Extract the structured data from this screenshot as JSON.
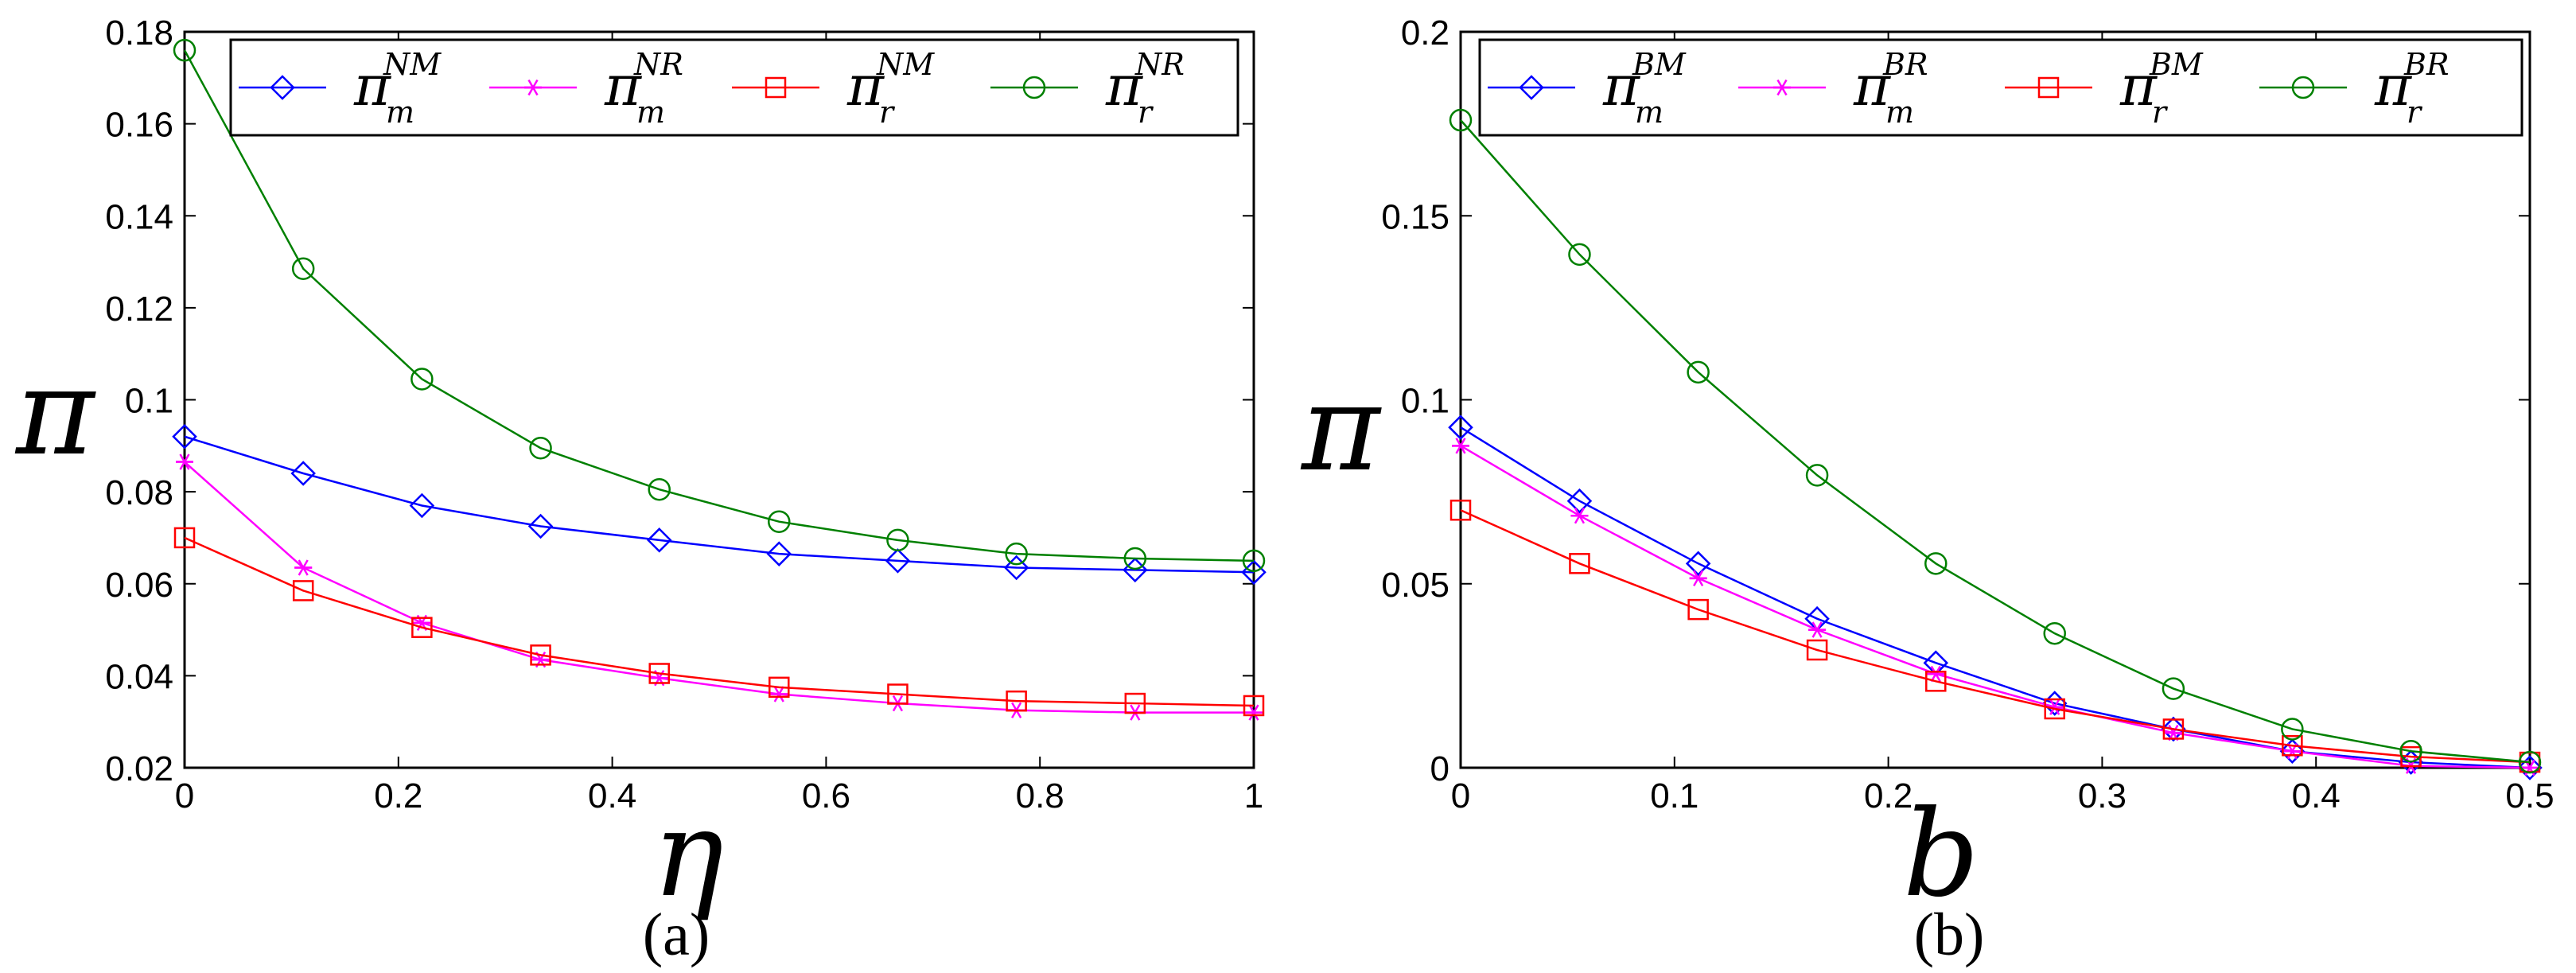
{
  "chart_data": [
    {
      "type": "line",
      "id": "a",
      "caption": "(a)",
      "xlabel": "η",
      "ylabel": "π",
      "xlim": [
        0,
        1
      ],
      "ylim": [
        0.02,
        0.18
      ],
      "xticks": [
        0,
        0.2,
        0.4,
        0.6,
        0.8,
        1
      ],
      "xtick_labels": [
        "0",
        "0.2",
        "0.4",
        "0.6",
        "0.8",
        "1"
      ],
      "yticks": [
        0.02,
        0.04,
        0.06,
        0.08,
        0.1,
        0.12,
        0.14,
        0.16,
        0.18
      ],
      "ytick_labels": [
        "0.02",
        "0.04",
        "0.06",
        "0.08",
        "0.1",
        "0.12",
        "0.14",
        "0.16",
        "0.18"
      ],
      "legend_position": "top",
      "x": [
        0,
        0.111,
        0.222,
        0.333,
        0.444,
        0.556,
        0.667,
        0.778,
        0.889,
        1
      ],
      "series": [
        {
          "name": "π_m^NM",
          "base": "π",
          "sub": "m",
          "sup": "NM",
          "color": "#0000ff",
          "marker": "diamond",
          "values": [
            0.092,
            0.084,
            0.077,
            0.0725,
            0.0695,
            0.0665,
            0.065,
            0.0635,
            0.063,
            0.0625
          ]
        },
        {
          "name": "π_m^NR",
          "base": "π",
          "sub": "m",
          "sup": "NR",
          "color": "#ff00ff",
          "marker": "star",
          "values": [
            0.0865,
            0.0635,
            0.0515,
            0.0435,
            0.0395,
            0.036,
            0.034,
            0.0325,
            0.032,
            0.032
          ]
        },
        {
          "name": "π_r^NM",
          "base": "π",
          "sub": "r",
          "sup": "NM",
          "color": "#ff0000",
          "marker": "square",
          "values": [
            0.07,
            0.0585,
            0.0505,
            0.0445,
            0.0405,
            0.0375,
            0.036,
            0.0345,
            0.034,
            0.0335
          ]
        },
        {
          "name": "π_r^NR",
          "base": "π",
          "sub": "r",
          "sup": "NR",
          "color": "#008000",
          "marker": "circle",
          "values": [
            0.176,
            0.1285,
            0.1045,
            0.0895,
            0.0805,
            0.0735,
            0.0695,
            0.0665,
            0.0655,
            0.065
          ]
        }
      ]
    },
    {
      "type": "line",
      "id": "b",
      "caption": "(b)",
      "xlabel": "b",
      "ylabel": "π",
      "xlim": [
        0,
        0.5
      ],
      "ylim": [
        0,
        0.2
      ],
      "xticks": [
        0,
        0.1,
        0.2,
        0.3,
        0.4,
        0.5
      ],
      "xtick_labels": [
        "0",
        "0.1",
        "0.2",
        "0.3",
        "0.4",
        "0.5"
      ],
      "yticks": [
        0,
        0.05,
        0.1,
        0.15,
        0.2
      ],
      "ytick_labels": [
        "0",
        "0.05",
        "0.1",
        "0.15",
        "0.2"
      ],
      "legend_position": "top",
      "x": [
        0,
        0.0556,
        0.1111,
        0.1667,
        0.2222,
        0.2778,
        0.3333,
        0.3889,
        0.4444,
        0.5
      ],
      "series": [
        {
          "name": "π_m^BM",
          "base": "π",
          "sub": "m",
          "sup": "BM",
          "color": "#0000ff",
          "marker": "diamond",
          "values": [
            0.0925,
            0.0725,
            0.0555,
            0.0405,
            0.0285,
            0.0175,
            0.0105,
            0.0045,
            0.0015,
            0.0
          ]
        },
        {
          "name": "π_m^BR",
          "base": "π",
          "sub": "m",
          "sup": "BR",
          "color": "#ff00ff",
          "marker": "star",
          "values": [
            0.0875,
            0.0685,
            0.0515,
            0.0375,
            0.0255,
            0.0165,
            0.0095,
            0.0045,
            0.0005,
            0.0
          ]
        },
        {
          "name": "π_r^BM",
          "base": "π",
          "sub": "r",
          "sup": "BM",
          "color": "#ff0000",
          "marker": "square",
          "values": [
            0.07,
            0.0555,
            0.043,
            0.032,
            0.0235,
            0.016,
            0.0105,
            0.006,
            0.003,
            0.0015
          ]
        },
        {
          "name": "π_r^BR",
          "base": "π",
          "sub": "r",
          "sup": "BR",
          "color": "#008000",
          "marker": "circle",
          "values": [
            0.176,
            0.1395,
            0.1075,
            0.0795,
            0.0555,
            0.0365,
            0.0215,
            0.0105,
            0.0045,
            0.0015
          ]
        }
      ]
    }
  ]
}
